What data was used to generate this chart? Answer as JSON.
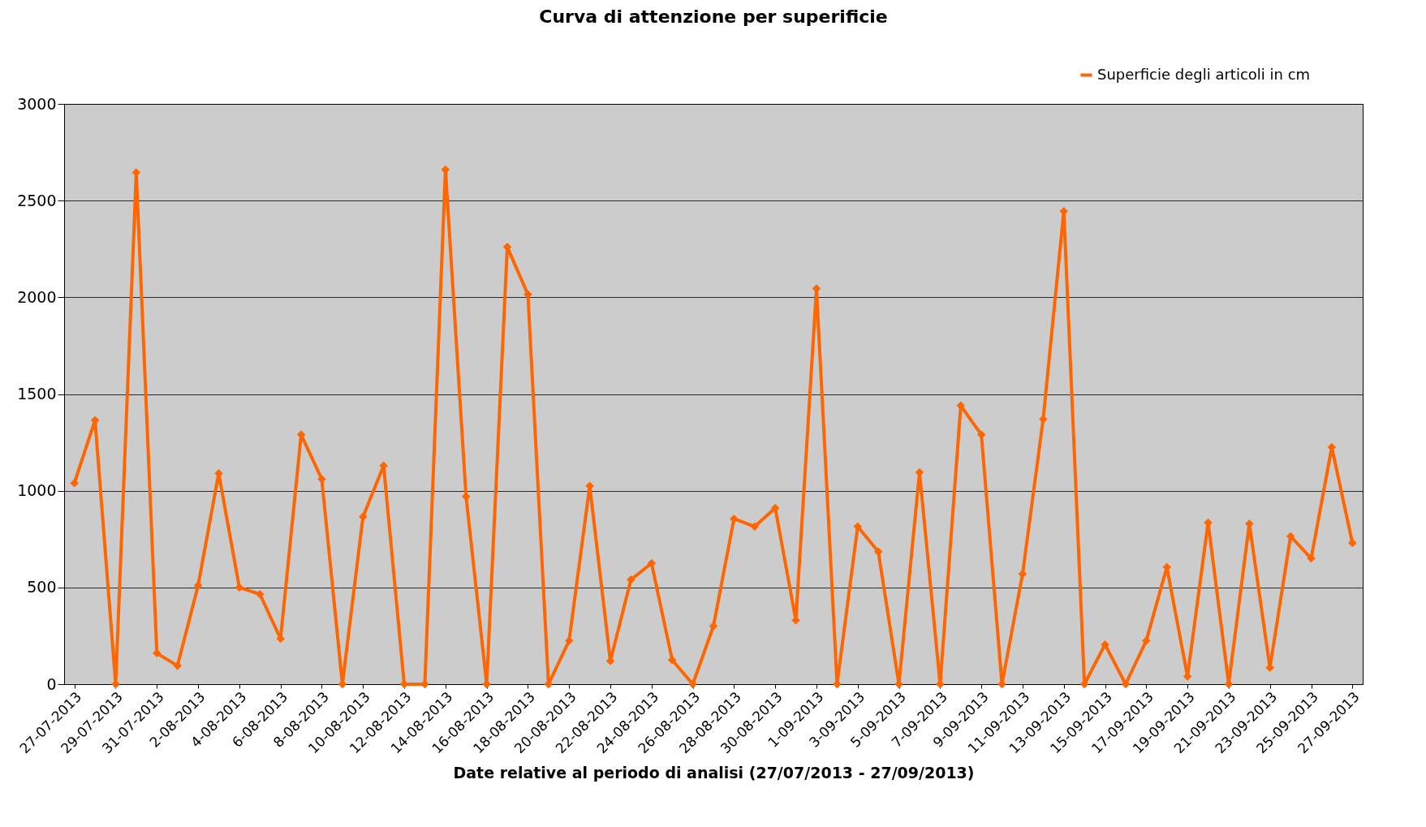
{
  "chart_data": {
    "type": "line",
    "title": "Curva di attenzione per superificie",
    "xlabel": "Date relative al periodo di analisi (27/07/2013 - 27/09/2013)",
    "categories": [
      "27-07-2013",
      null,
      "29-07-2013",
      null,
      "31-07-2013",
      null,
      "2-08-2013",
      null,
      "4-08-2013",
      null,
      "6-08-2013",
      null,
      "8-08-2013",
      null,
      "10-08-2013",
      null,
      "12-08-2013",
      null,
      "14-08-2013",
      null,
      "16-08-2013",
      null,
      "18-08-2013",
      null,
      "20-08-2013",
      null,
      "22-08-2013",
      null,
      "24-08-2013",
      null,
      "26-08-2013",
      null,
      "28-08-2013",
      null,
      "30-08-2013",
      null,
      "1-09-2013",
      null,
      "3-09-2013",
      null,
      "5-09-2013",
      null,
      "7-09-2013",
      null,
      "9-09-2013",
      null,
      "11-09-2013",
      null,
      "13-09-2013",
      null,
      "15-09-2013",
      null,
      "17-09-2013",
      null,
      "19-09-2013",
      null,
      "21-09-2013",
      null,
      "23-09-2013",
      null,
      "25-09-2013",
      null,
      "27-09-2013"
    ],
    "series": [
      {
        "name": "Superficie degli articoli in cm",
        "color": "#ff6600",
        "values": [
          1040,
          1365,
          0,
          2645,
          160,
          95,
          510,
          1090,
          500,
          465,
          235,
          1290,
          1060,
          0,
          865,
          1130,
          0,
          0,
          2660,
          970,
          0,
          2260,
          2015,
          0,
          225,
          1025,
          120,
          540,
          625,
          125,
          0,
          300,
          855,
          815,
          910,
          330,
          2045,
          0,
          815,
          685,
          0,
          1095,
          0,
          1440,
          1290,
          0,
          570,
          1370,
          2445,
          0,
          205,
          0,
          225,
          605,
          40,
          835,
          0,
          830,
          85,
          765,
          650,
          1225,
          730
        ]
      }
    ],
    "ylim": [
      0,
      3000
    ],
    "yticks": [
      0,
      500,
      1000,
      1500,
      2000,
      2500,
      3000
    ],
    "grid": "y",
    "legend": "top right",
    "marker": "diamond",
    "line_style": "solid"
  }
}
